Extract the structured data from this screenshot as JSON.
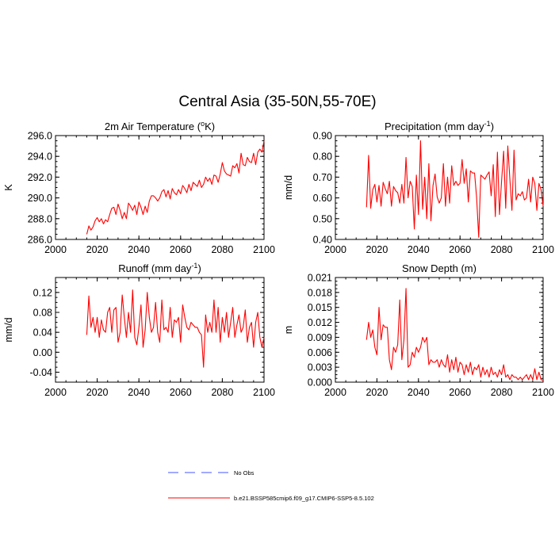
{
  "figure": {
    "title": "Central Asia (35-50N,55-70E)"
  },
  "legend": {
    "items": [
      {
        "label": "No Obs",
        "color": "#4455ff",
        "dash": true
      },
      {
        "label": "b.e21.BSSP585cmip6.f09_g17.CMIP6-SSP5-8.5.102",
        "color": "#ff0000",
        "dash": false
      }
    ]
  },
  "chart_data": [
    {
      "type": "line",
      "title": "2m Air Temperature (°K)",
      "title_main": "2m Air Temperature (",
      "title_sup": "o",
      "title_tail": "K)",
      "xlabel": "",
      "ylabel": "K",
      "xlim": [
        2000,
        2100
      ],
      "ylim": [
        286,
        296
      ],
      "xticks": [
        2000,
        2020,
        2040,
        2060,
        2080,
        2100
      ],
      "yticks": [
        286,
        288,
        290,
        292,
        294,
        296
      ],
      "ytick_decimals": 1,
      "series": [
        {
          "color": "#ff0000",
          "x": [
            2015,
            2016,
            2017,
            2018,
            2019,
            2020,
            2021,
            2022,
            2023,
            2024,
            2025,
            2026,
            2027,
            2028,
            2029,
            2030,
            2031,
            2032,
            2033,
            2034,
            2035,
            2036,
            2037,
            2038,
            2039,
            2040,
            2041,
            2042,
            2043,
            2044,
            2045,
            2046,
            2047,
            2048,
            2049,
            2050,
            2051,
            2052,
            2053,
            2054,
            2055,
            2056,
            2057,
            2058,
            2059,
            2060,
            2061,
            2062,
            2063,
            2064,
            2065,
            2066,
            2067,
            2068,
            2069,
            2070,
            2071,
            2072,
            2073,
            2074,
            2075,
            2076,
            2077,
            2078,
            2079,
            2080,
            2081,
            2082,
            2083,
            2084,
            2085,
            2086,
            2087,
            2088,
            2089,
            2090,
            2091,
            2092,
            2093,
            2094,
            2095,
            2096,
            2097,
            2098,
            2099,
            2100
          ],
          "y": [
            286.5,
            287.3,
            286.9,
            287.2,
            287.8,
            288.1,
            287.7,
            288.0,
            287.5,
            287.9,
            287.7,
            288.4,
            289.0,
            289.1,
            288.4,
            289.4,
            288.8,
            288.0,
            288.6,
            288.0,
            289.5,
            289.2,
            288.8,
            289.3,
            288.4,
            289.6,
            289.1,
            288.4,
            289.2,
            288.6,
            289.7,
            290.2,
            290.2,
            290.0,
            289.7,
            290.0,
            290.6,
            290.8,
            290.1,
            290.7,
            289.9,
            290.9,
            290.5,
            290.3,
            290.8,
            290.4,
            291.2,
            290.9,
            290.5,
            291.3,
            290.7,
            291.5,
            291.3,
            291.1,
            291.7,
            291.0,
            291.3,
            292.0,
            291.6,
            291.9,
            291.3,
            292.2,
            292.1,
            291.5,
            292.3,
            293.4,
            292.6,
            292.3,
            292.2,
            292.1,
            293.1,
            292.9,
            293.3,
            292.4,
            294.3,
            293.2,
            293.1,
            293.9,
            293.5,
            293.4,
            294.3,
            293.2,
            294.4,
            294.7,
            294.4,
            295.5
          ]
        }
      ]
    },
    {
      "type": "line",
      "title": "Precipitation (mm day⁻¹)",
      "title_main": "Precipitation (mm day",
      "title_sup": "-1",
      "title_tail": ")",
      "xlabel": "",
      "ylabel": "mm/d",
      "xlim": [
        2000,
        2100
      ],
      "ylim": [
        0.4,
        0.9
      ],
      "xticks": [
        2000,
        2020,
        2040,
        2060,
        2080,
        2100
      ],
      "yticks": [
        0.4,
        0.5,
        0.6,
        0.7,
        0.8,
        0.9
      ],
      "ytick_decimals": 2,
      "series": [
        {
          "color": "#ff0000",
          "x": [
            2015,
            2016,
            2017,
            2018,
            2019,
            2020,
            2021,
            2022,
            2023,
            2024,
            2025,
            2026,
            2027,
            2028,
            2029,
            2030,
            2031,
            2032,
            2033,
            2034,
            2035,
            2036,
            2037,
            2038,
            2039,
            2040,
            2041,
            2042,
            2043,
            2044,
            2045,
            2046,
            2047,
            2048,
            2049,
            2050,
            2051,
            2052,
            2053,
            2054,
            2055,
            2056,
            2057,
            2058,
            2059,
            2060,
            2061,
            2062,
            2063,
            2064,
            2065,
            2066,
            2067,
            2068,
            2069,
            2070,
            2071,
            2072,
            2073,
            2074,
            2075,
            2076,
            2077,
            2078,
            2079,
            2080,
            2081,
            2082,
            2083,
            2084,
            2085,
            2086,
            2087,
            2088,
            2089,
            2090,
            2091,
            2092,
            2093,
            2094,
            2095,
            2096,
            2097,
            2098,
            2099,
            2100
          ],
          "y": [
            0.555,
            0.805,
            0.55,
            0.64,
            0.665,
            0.58,
            0.66,
            0.56,
            0.675,
            0.645,
            0.62,
            0.68,
            0.56,
            0.655,
            0.635,
            0.625,
            0.575,
            0.665,
            0.575,
            0.795,
            0.6,
            0.68,
            0.655,
            0.45,
            0.71,
            0.52,
            0.875,
            0.545,
            0.7,
            0.5,
            0.765,
            0.49,
            0.66,
            0.715,
            0.605,
            0.575,
            0.6,
            0.765,
            0.56,
            0.7,
            0.575,
            0.755,
            0.66,
            0.68,
            0.66,
            0.67,
            0.785,
            0.67,
            0.74,
            0.58,
            0.73,
            0.72,
            0.72,
            0.6,
            0.41,
            0.71,
            0.7,
            0.69,
            0.71,
            0.725,
            0.61,
            0.76,
            0.51,
            0.82,
            0.52,
            0.68,
            0.825,
            0.55,
            0.85,
            0.69,
            0.54,
            0.83,
            0.59,
            0.62,
            0.61,
            0.63,
            0.59,
            0.6,
            0.69,
            0.58,
            0.7,
            0.67,
            0.54,
            0.67,
            0.64,
            0.56
          ]
        }
      ]
    },
    {
      "type": "line",
      "title": "Runoff (mm day⁻¹)",
      "title_main": "Runoff (mm day",
      "title_sup": "-1",
      "title_tail": ")",
      "xlabel": "",
      "ylabel": "mm/d",
      "xlim": [
        2000,
        2100
      ],
      "ylim": [
        -0.06,
        0.15
      ],
      "xticks": [
        2000,
        2020,
        2040,
        2060,
        2080,
        2100
      ],
      "yticks": [
        -0.04,
        0.0,
        0.04,
        0.08,
        0.12
      ],
      "ytick_decimals": 2,
      "series": [
        {
          "color": "#ff0000",
          "x": [
            2015,
            2016,
            2017,
            2018,
            2019,
            2020,
            2021,
            2022,
            2023,
            2024,
            2025,
            2026,
            2027,
            2028,
            2029,
            2030,
            2031,
            2032,
            2033,
            2034,
            2035,
            2036,
            2037,
            2038,
            2039,
            2040,
            2041,
            2042,
            2043,
            2044,
            2045,
            2046,
            2047,
            2048,
            2049,
            2050,
            2051,
            2052,
            2053,
            2054,
            2055,
            2056,
            2057,
            2058,
            2059,
            2060,
            2061,
            2062,
            2063,
            2064,
            2065,
            2066,
            2067,
            2068,
            2069,
            2070,
            2071,
            2072,
            2073,
            2074,
            2075,
            2076,
            2077,
            2078,
            2079,
            2080,
            2081,
            2082,
            2083,
            2084,
            2085,
            2086,
            2087,
            2088,
            2089,
            2090,
            2091,
            2092,
            2093,
            2094,
            2095,
            2096,
            2097,
            2098,
            2099,
            2100
          ],
          "y": [
            0.035,
            0.113,
            0.05,
            0.07,
            0.04,
            0.07,
            0.03,
            0.065,
            0.045,
            0.04,
            0.08,
            0.09,
            0.04,
            0.085,
            0.09,
            0.02,
            0.04,
            0.115,
            0.07,
            0.03,
            0.08,
            0.04,
            0.125,
            0.03,
            0.015,
            0.05,
            0.095,
            0.01,
            0.045,
            0.12,
            0.07,
            0.04,
            0.05,
            0.1,
            0.04,
            0.02,
            0.105,
            0.045,
            0.05,
            0.04,
            0.09,
            0.03,
            0.065,
            0.06,
            0.07,
            0.02,
            0.095,
            0.07,
            0.05,
            0.045,
            0.06,
            0.055,
            0.05,
            0.05,
            0.04,
            0.035,
            -0.03,
            0.075,
            0.04,
            0.06,
            0.04,
            0.105,
            0.04,
            0.09,
            0.02,
            0.07,
            0.04,
            0.08,
            0.03,
            0.06,
            0.09,
            0.03,
            0.055,
            0.075,
            0.04,
            0.05,
            0.085,
            0.02,
            0.05,
            0.06,
            0.01,
            0.06,
            0.08,
            0.03,
            0.01,
            0.03
          ]
        }
      ]
    },
    {
      "type": "line",
      "title": "Snow Depth (m)",
      "title_main": "Snow Depth (m)",
      "title_sup": "",
      "title_tail": "",
      "xlabel": "",
      "ylabel": "m",
      "xlim": [
        2000,
        2100
      ],
      "ylim": [
        0.0,
        0.021
      ],
      "xticks": [
        2000,
        2020,
        2040,
        2060,
        2080,
        2100
      ],
      "yticks": [
        0.0,
        0.003,
        0.006,
        0.009,
        0.012,
        0.015,
        0.018,
        0.021
      ],
      "ytick_decimals": 3,
      "series": [
        {
          "color": "#ff0000",
          "x": [
            2015,
            2016,
            2017,
            2018,
            2019,
            2020,
            2021,
            2022,
            2023,
            2024,
            2025,
            2026,
            2027,
            2028,
            2029,
            2030,
            2031,
            2032,
            2033,
            2034,
            2035,
            2036,
            2037,
            2038,
            2039,
            2040,
            2041,
            2042,
            2043,
            2044,
            2045,
            2046,
            2047,
            2048,
            2049,
            2050,
            2051,
            2052,
            2053,
            2054,
            2055,
            2056,
            2057,
            2058,
            2059,
            2060,
            2061,
            2062,
            2063,
            2064,
            2065,
            2066,
            2067,
            2068,
            2069,
            2070,
            2071,
            2072,
            2073,
            2074,
            2075,
            2076,
            2077,
            2078,
            2079,
            2080,
            2081,
            2082,
            2083,
            2084,
            2085,
            2086,
            2087,
            2088,
            2089,
            2090,
            2091,
            2092,
            2093,
            2094,
            2095,
            2096,
            2097,
            2098,
            2099,
            2100
          ],
          "y": [
            0.0085,
            0.012,
            0.009,
            0.0105,
            0.007,
            0.0055,
            0.015,
            0.0085,
            0.0115,
            0.011,
            0.011,
            0.0045,
            0.0025,
            0.007,
            0.006,
            0.0075,
            0.0165,
            0.0045,
            0.0085,
            0.0188,
            0.003,
            0.0035,
            0.006,
            0.005,
            0.007,
            0.006,
            0.007,
            0.009,
            0.008,
            0.009,
            0.0035,
            0.0045,
            0.004,
            0.004,
            0.0045,
            0.003,
            0.0045,
            0.0035,
            0.003,
            0.0055,
            0.002,
            0.0045,
            0.0025,
            0.005,
            0.002,
            0.004,
            0.0035,
            0.0015,
            0.0035,
            0.002,
            0.004,
            0.0015,
            0.003,
            0.0025,
            0.0035,
            0.001,
            0.003,
            0.0015,
            0.0025,
            0.001,
            0.003,
            0.0015,
            0.002,
            0.001,
            0.0025,
            0.0015,
            0.0035,
            0.001,
            0.0015,
            0.0005,
            0.0015,
            0.001,
            0.001,
            0.0005,
            0.001,
            0.0005,
            0.001,
            0.0015,
            0.0005,
            0.0015,
            0.0005,
            0.0027,
            0.0005,
            0.002,
            0.0005,
            0.0004
          ]
        }
      ]
    }
  ]
}
